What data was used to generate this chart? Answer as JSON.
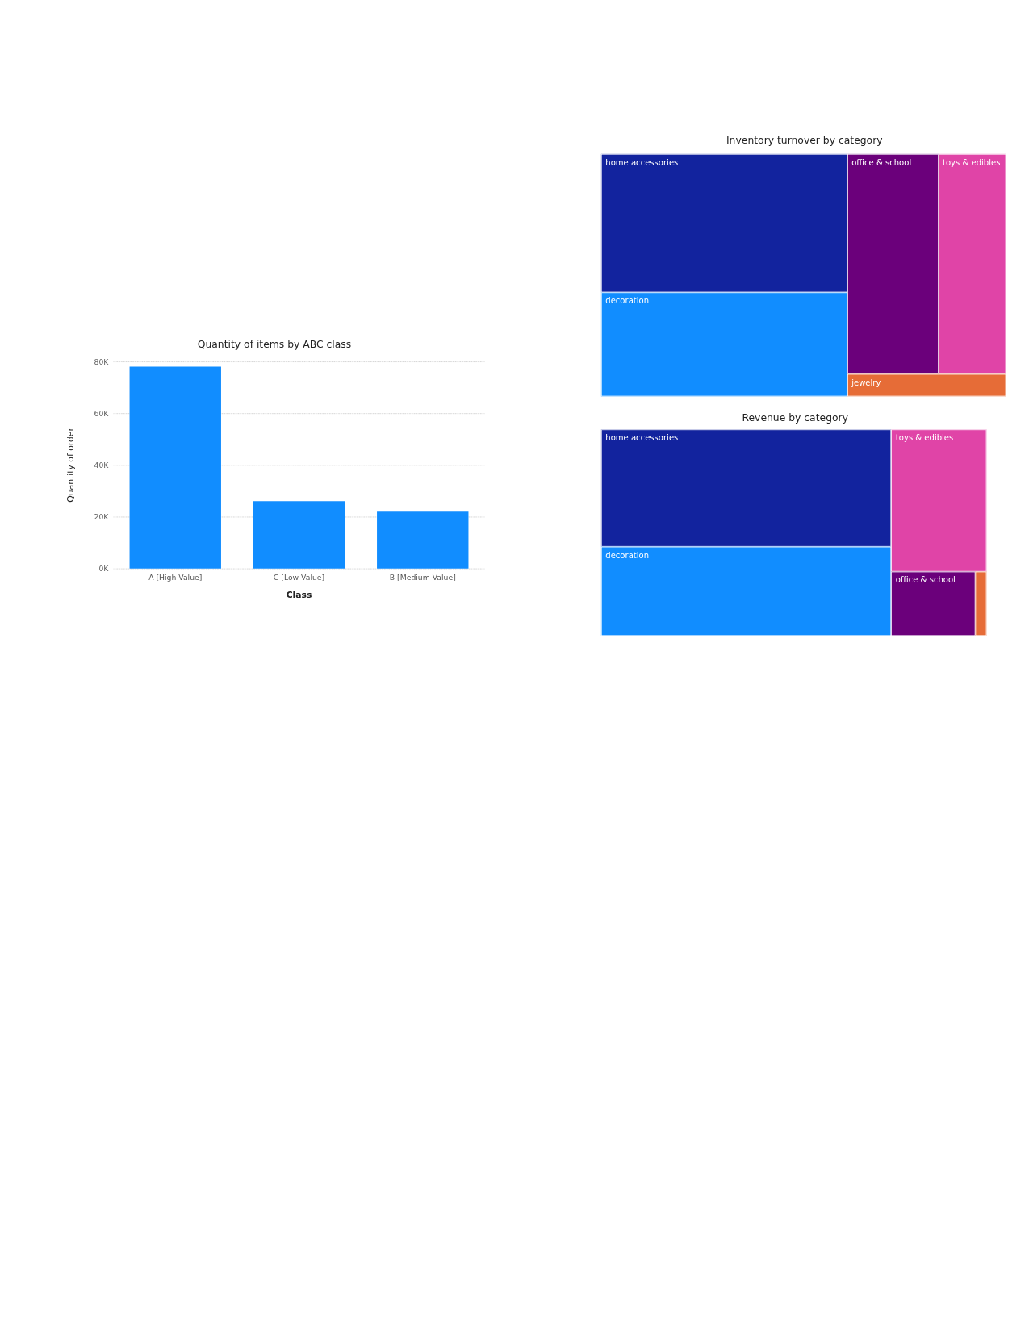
{
  "chart_data": [
    {
      "type": "other",
      "title": "Inventory turnover by category",
      "categories": [
        "home accessories",
        "decoration",
        "office & school",
        "toys & edibles",
        "jewelry"
      ],
      "colors": [
        "#12239e",
        "#118dff",
        "#6b007b",
        "#e044a7",
        "#e66c37"
      ]
    },
    {
      "type": "other",
      "title": "Revenue by category",
      "categories": [
        "home accessories",
        "decoration",
        "toys & edibles",
        "office & school",
        null
      ],
      "colors": [
        "#12239e",
        "#118dff",
        "#e044a7",
        "#6b007b",
        "#e66c37"
      ]
    },
    {
      "type": "bar",
      "title": "Quantity of items by ABC class",
      "xlabel": "Class",
      "ylabel": "Quantity of order",
      "categories": [
        "A [High Value]",
        "C [Low Value]",
        "B [Medium Value]"
      ],
      "values": [
        78000,
        26000,
        22000
      ],
      "color": "#118dff",
      "ylim": [
        0,
        80000
      ],
      "yticks": [
        {
          "value": 0,
          "label": "0K"
        },
        {
          "value": 20000,
          "label": "20K"
        },
        {
          "value": 40000,
          "label": "40K"
        },
        {
          "value": 60000,
          "label": "60K"
        },
        {
          "value": 80000,
          "label": "80K"
        }
      ],
      "grid": "y"
    }
  ]
}
